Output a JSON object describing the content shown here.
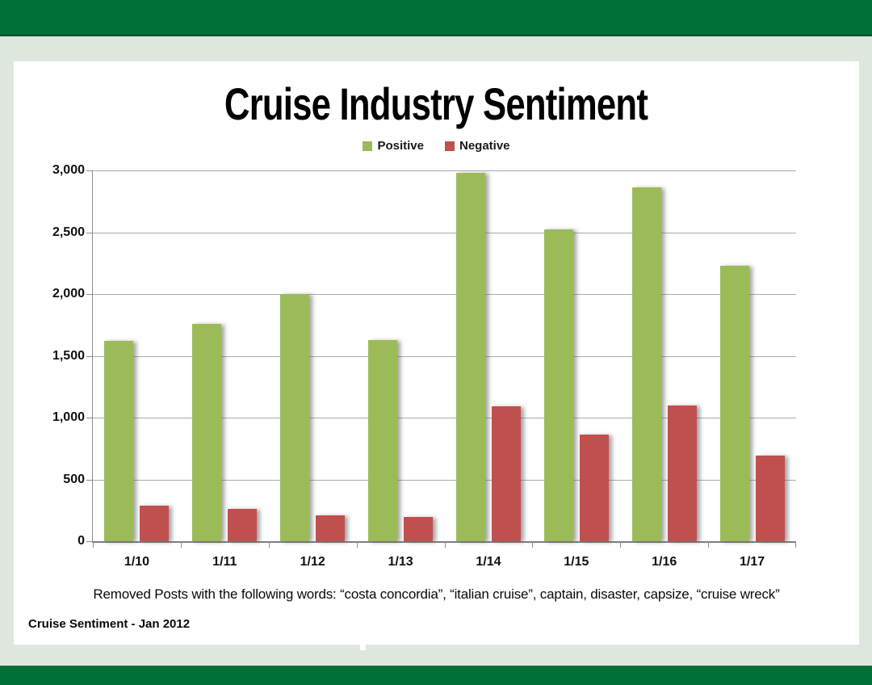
{
  "page": {
    "caption": "Removed Posts with the following words: “costa concordia”, “italian cruise”, captain, disaster, capsize, “cruise wreck”",
    "footer_label": "Cruise Sentiment - Jan 2012"
  },
  "chart_data": {
    "type": "bar",
    "title": "Cruise Industry Sentiment",
    "categories": [
      "1/10",
      "1/11",
      "1/12",
      "1/13",
      "1/14",
      "1/15",
      "1/16",
      "1/17"
    ],
    "series": [
      {
        "name": "Positive",
        "color": "#9BBB59",
        "values": [
          1620,
          1760,
          2000,
          1630,
          2980,
          2520,
          2860,
          2230
        ]
      },
      {
        "name": "Negative",
        "color": "#C0504D",
        "values": [
          290,
          260,
          210,
          195,
          1090,
          860,
          1100,
          690
        ]
      }
    ],
    "ylim": [
      0,
      3000
    ],
    "ytick_step": 500,
    "ytick_labels": [
      "0",
      "500",
      "1,000",
      "1,500",
      "2,000",
      "2,500",
      "3,000"
    ],
    "xlabel": "",
    "ylabel": "",
    "grid": "horizontal",
    "legend_position": "top"
  },
  "colors": {
    "banner_green": "#017038",
    "banner_edge": "#00522B",
    "background_green": "#DEE7DE",
    "gridline": "#ABABAB",
    "axis": "#8C8C8C"
  }
}
